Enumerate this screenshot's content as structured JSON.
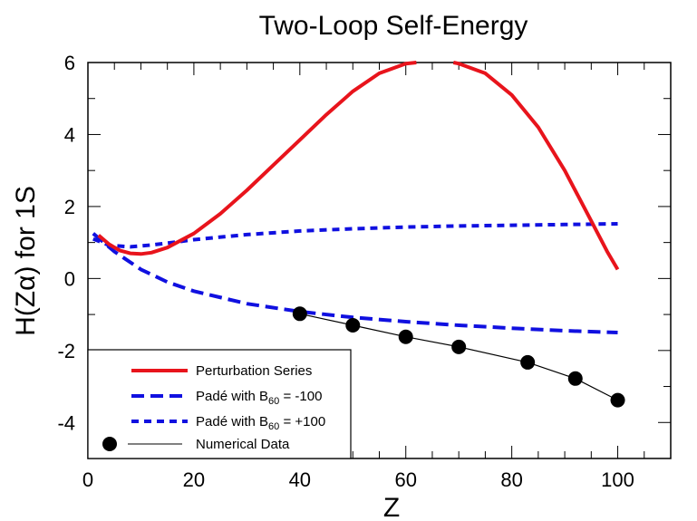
{
  "chart_data": {
    "type": "line",
    "title": "Two-Loop Self-Energy",
    "xlabel": "Z",
    "ylabel": "H(Zα) for 1S",
    "xlim": [
      0,
      110
    ],
    "ylim": [
      -5,
      6
    ],
    "x_ticks": [
      "0",
      "20",
      "40",
      "60",
      "80",
      "100"
    ],
    "y_ticks": [
      "-4",
      "-2",
      "0",
      "2",
      "4",
      "6"
    ],
    "legend_position": "bottom-left",
    "series": [
      {
        "name": "Perturbation Series",
        "style": "solid",
        "color": "#e8141c",
        "x": [
          2,
          4,
          6,
          8,
          10,
          12,
          15,
          20,
          25,
          30,
          35,
          40,
          45,
          50,
          55,
          60,
          62
        ],
        "y": [
          1.2,
          0.95,
          0.78,
          0.7,
          0.68,
          0.72,
          0.86,
          1.25,
          1.8,
          2.45,
          3.15,
          3.85,
          4.55,
          5.2,
          5.7,
          5.97,
          6.0
        ],
        "x2": [
          69,
          70,
          75,
          80,
          85,
          90,
          95,
          98,
          100
        ],
        "y2": [
          6.0,
          5.97,
          5.7,
          5.1,
          4.2,
          3.0,
          1.6,
          0.75,
          0.25
        ]
      },
      {
        "name": "Padé with B60 = -100",
        "style": "long-dash",
        "color": "#1010e0",
        "x": [
          1,
          5,
          10,
          15,
          20,
          30,
          40,
          50,
          60,
          70,
          80,
          90,
          100
        ],
        "y": [
          1.25,
          0.75,
          0.25,
          -0.1,
          -0.35,
          -0.7,
          -0.92,
          -1.08,
          -1.2,
          -1.3,
          -1.38,
          -1.45,
          -1.5
        ]
      },
      {
        "name": "Padé with B60 = +100",
        "style": "short-dash",
        "color": "#1010e0",
        "x": [
          1,
          4,
          8,
          12,
          16,
          20,
          30,
          40,
          50,
          60,
          70,
          80,
          90,
          100
        ],
        "y": [
          1.1,
          0.92,
          0.88,
          0.93,
          1.0,
          1.08,
          1.22,
          1.32,
          1.38,
          1.43,
          1.46,
          1.48,
          1.5,
          1.52
        ]
      },
      {
        "name": "Numerical Data",
        "style": "markers+line",
        "color": "#000000",
        "x": [
          40,
          50,
          60,
          70,
          83,
          92,
          100
        ],
        "y": [
          -0.98,
          -1.3,
          -1.62,
          -1.9,
          -2.33,
          -2.78,
          -3.38
        ]
      }
    ],
    "legend": {
      "entries": [
        {
          "prefix": "Perturbation Series",
          "sub": "",
          "suffix": ""
        },
        {
          "prefix": "Padé with B",
          "sub": "60",
          "suffix": " = -100"
        },
        {
          "prefix": "Padé with B",
          "sub": "60",
          "suffix": " = +100"
        },
        {
          "prefix": "Numerical Data",
          "sub": "",
          "suffix": ""
        }
      ]
    }
  }
}
